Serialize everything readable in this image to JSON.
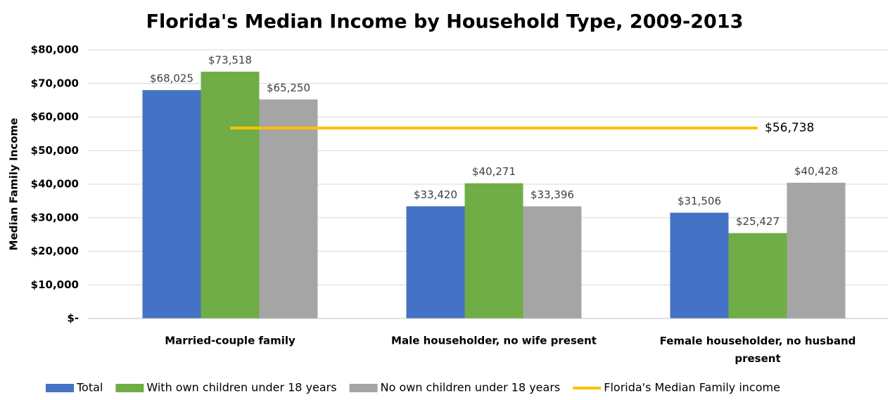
{
  "chart_data": {
    "type": "bar",
    "title": "Florida's Median Income by Household Type, 2009-2013",
    "y_label": "Median Family Income",
    "categories": [
      "Married-couple family",
      "Male householder, no wife present",
      "Female householder, no husband present"
    ],
    "series": [
      {
        "name": "Total",
        "color": "#4472c4",
        "values": [
          68025,
          33420,
          31506
        ],
        "value_labels": [
          "$68,025",
          "$33,420",
          "$31,506"
        ]
      },
      {
        "name": "With own children under 18 years",
        "color": "#70ad47",
        "values": [
          73518,
          40271,
          25427
        ],
        "value_labels": [
          "$73,518",
          "$40,271",
          "$25,427"
        ]
      },
      {
        "name": "No own children under 18 years",
        "color": "#a5a5a5",
        "values": [
          65250,
          33396,
          40428
        ],
        "value_labels": [
          "$65,250",
          "$33,396",
          "$40,428"
        ]
      }
    ],
    "reference_line": {
      "name": "Florida's Median Family income",
      "color": "#ffc000",
      "value": 56738,
      "value_label": "$56,738"
    },
    "ylim": [
      0,
      80000
    ],
    "yticks": [
      {
        "value": 0,
        "label": "$-"
      },
      {
        "value": 10000,
        "label": "$10,000"
      },
      {
        "value": 20000,
        "label": "$20,000"
      },
      {
        "value": 30000,
        "label": "$30,000"
      },
      {
        "value": 40000,
        "label": "$40,000"
      },
      {
        "value": 50000,
        "label": "$50,000"
      },
      {
        "value": 60000,
        "label": "$60,000"
      },
      {
        "value": 70000,
        "label": "$70,000"
      },
      {
        "value": 80000,
        "label": "$80,000"
      }
    ],
    "grid": true,
    "legend": "bottom"
  }
}
